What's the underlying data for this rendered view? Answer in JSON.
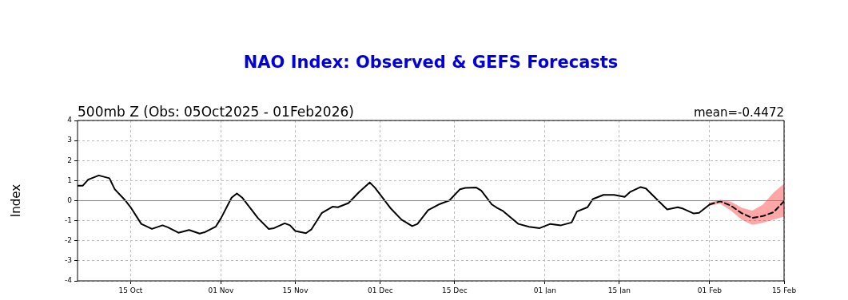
{
  "chart_data": {
    "type": "line",
    "title": "NAO Index: Observed & GEFS Forecasts",
    "subtitle": "500mb Z (Obs: 05Oct2025 - 01Feb2026)",
    "annotations": [
      "mean=-0.4472"
    ],
    "ylabel": "Index",
    "xlim": [
      "2025-10-05",
      "2026-02-15"
    ],
    "xticks": [
      {
        "value": "2025-10-15",
        "label": "15 Oct"
      },
      {
        "value": "2025-11-01",
        "label": "01 Nov"
      },
      {
        "value": "2025-11-15",
        "label": "15 Nov"
      },
      {
        "value": "2025-12-01",
        "label": "01 Dec"
      },
      {
        "value": "2025-12-15",
        "label": "15 Dec"
      },
      {
        "value": "2026-01-01",
        "label": "01 Jan"
      },
      {
        "value": "2026-01-15",
        "label": "15 Jan"
      },
      {
        "value": "2026-02-01",
        "label": "01 Feb"
      },
      {
        "value": "2026-02-15",
        "label": "15 Feb"
      }
    ],
    "ylim": [
      -4,
      4
    ],
    "yticks": [
      -4,
      -3,
      -2,
      -1,
      0,
      1,
      2,
      3,
      4
    ],
    "grid": true,
    "legend": false,
    "marker": "none",
    "ref_lines": [
      {
        "axis": "y",
        "value": 0,
        "color": "#888888",
        "line_style": "solid"
      }
    ],
    "series": [
      {
        "color": "#000000",
        "line_style": "solid",
        "x": [
          "2025-10-05",
          "2025-10-06",
          "2025-10-07",
          "2025-10-09",
          "2025-10-11",
          "2025-10-12",
          "2025-10-14",
          "2025-10-15",
          "2025-10-17",
          "2025-10-19",
          "2025-10-21",
          "2025-10-22",
          "2025-10-24",
          "2025-10-26",
          "2025-10-28",
          "2025-10-29",
          "2025-10-31",
          "2025-11-01",
          "2025-11-03",
          "2025-11-04",
          "2025-11-05",
          "2025-11-08",
          "2025-11-10",
          "2025-11-11",
          "2025-11-13",
          "2025-11-14",
          "2025-11-15",
          "2025-11-17",
          "2025-11-18",
          "2025-11-20",
          "2025-11-22",
          "2025-11-23",
          "2025-11-25",
          "2025-11-27",
          "2025-11-29",
          "2025-11-30",
          "2025-12-03",
          "2025-12-05",
          "2025-12-07",
          "2025-12-08",
          "2025-12-10",
          "2025-12-12",
          "2025-12-14",
          "2025-12-16",
          "2025-12-17",
          "2025-12-19",
          "2025-12-20",
          "2025-12-22",
          "2025-12-23",
          "2025-12-24",
          "2025-12-27",
          "2025-12-29",
          "2025-12-31",
          "2026-01-02",
          "2026-01-04",
          "2026-01-06",
          "2026-01-07",
          "2026-01-09",
          "2026-01-10",
          "2026-01-12",
          "2026-01-14",
          "2026-01-16",
          "2026-01-17",
          "2026-01-19",
          "2026-01-20",
          "2026-01-22",
          "2026-01-24",
          "2026-01-26",
          "2026-01-27",
          "2026-01-29",
          "2026-01-30",
          "2026-02-01"
        ],
        "values": [
          0.75,
          0.75,
          1.05,
          1.26,
          1.12,
          0.57,
          0.01,
          -0.33,
          -1.16,
          -1.41,
          -1.23,
          -1.33,
          -1.6,
          -1.46,
          -1.64,
          -1.57,
          -1.3,
          -0.88,
          0.15,
          0.36,
          0.15,
          -0.88,
          -1.41,
          -1.37,
          -1.13,
          -1.23,
          -1.51,
          -1.62,
          -1.44,
          -0.61,
          -0.3,
          -0.33,
          -0.12,
          0.43,
          0.91,
          0.64,
          -0.4,
          -0.95,
          -1.27,
          -1.16,
          -0.47,
          -0.19,
          0.01,
          0.57,
          0.64,
          0.66,
          0.5,
          -0.19,
          -0.36,
          -0.5,
          -1.16,
          -1.3,
          -1.37,
          -1.16,
          -1.23,
          -1.09,
          -0.54,
          -0.33,
          0.08,
          0.29,
          0.29,
          0.19,
          0.43,
          0.68,
          0.61,
          0.08,
          -0.44,
          -0.33,
          -0.4,
          -0.64,
          -0.61,
          -0.19
        ]
      },
      {
        "color": "#ff0000",
        "x": [
          "2026-02-01",
          "2026-02-03",
          "2026-02-05",
          "2026-02-07",
          "2026-02-09",
          "2026-02-11",
          "2026-02-13",
          "2026-02-15"
        ],
        "values": [
          null,
          null,
          null,
          null,
          null,
          null,
          null,
          null
        ],
        "lower": [
          -0.25,
          -0.15,
          -0.5,
          -0.95,
          -1.2,
          -1.1,
          -0.95,
          -0.8
        ],
        "upper": [
          -0.1,
          0.05,
          -0.05,
          -0.35,
          -0.5,
          -0.2,
          0.4,
          0.85
        ]
      },
      {
        "color": "#000000",
        "line_style": "dashed",
        "x": [
          "2026-02-01",
          "2026-02-03",
          "2026-02-05",
          "2026-02-07",
          "2026-02-09",
          "2026-02-11",
          "2026-02-13",
          "2026-02-15"
        ],
        "values": [
          -0.19,
          -0.03,
          -0.25,
          -0.62,
          -0.86,
          -0.77,
          -0.58,
          -0.03
        ]
      }
    ]
  }
}
